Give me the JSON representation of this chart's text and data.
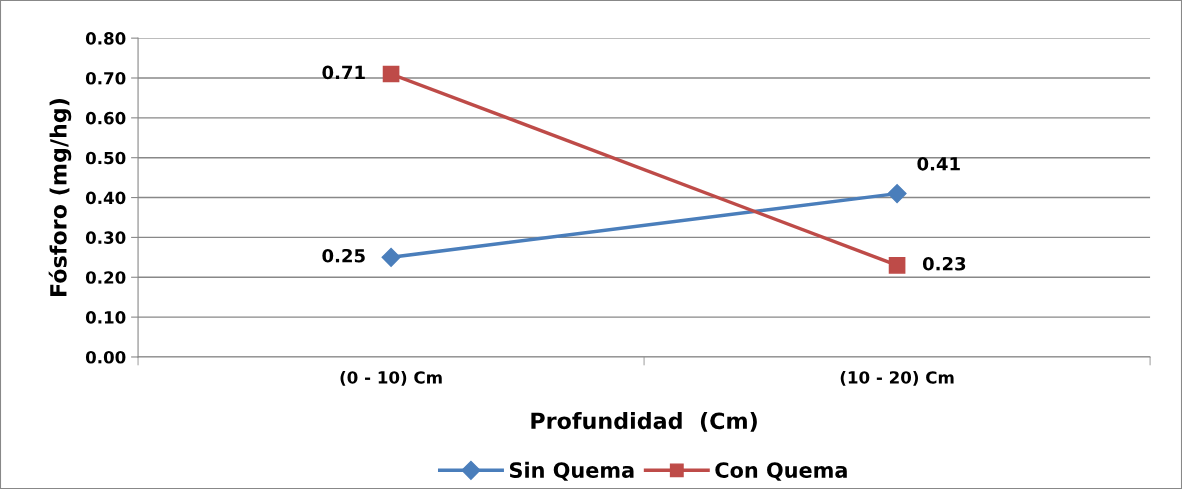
{
  "chart_data": {
    "type": "line",
    "xlabel": "Profundidad  (Cm)",
    "ylabel": "Fósforo (mg/hg)",
    "categories": [
      "(0 - 10) Cm",
      "(10 - 20) Cm"
    ],
    "series": [
      {
        "name": "Sin Quema",
        "color": "#4a7ebb",
        "values": [
          0.25,
          0.41
        ],
        "marker": "diamond"
      },
      {
        "name": "Con Quema",
        "color": "#be4b48",
        "values": [
          0.71,
          0.23
        ],
        "marker": "square"
      }
    ],
    "ylim": [
      0,
      0.8
    ],
    "yticks": [
      {
        "value": 0,
        "label": "0.00"
      },
      {
        "value": 0.1,
        "label": "0.10"
      },
      {
        "value": 0.2,
        "label": "0.20"
      },
      {
        "value": 0.3,
        "label": "0.30"
      },
      {
        "value": 0.4,
        "label": "0.40"
      },
      {
        "value": 0.5,
        "label": "0.50"
      },
      {
        "value": 0.6,
        "label": "0.60"
      },
      {
        "value": 0.7,
        "label": "0.70"
      },
      {
        "value": 0.8,
        "label": "0.80"
      }
    ],
    "grid": "y",
    "legend": "bottom",
    "data_labels": true,
    "line_style": "solid"
  }
}
